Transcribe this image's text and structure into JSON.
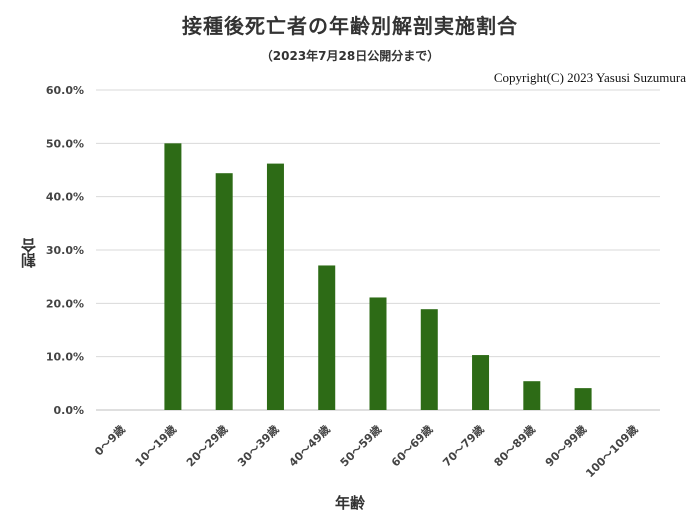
{
  "chart_data": {
    "type": "bar",
    "title": "接種後死亡者の年齢別解剖実施割合",
    "subtitle": "（2023年7月28日公開分まで）",
    "copyright": "Copyright(C)  2023 Yasusi Suzumura",
    "xlabel": "年齢",
    "ylabel": "割合",
    "categories": [
      "0～9歳",
      "10～19歳",
      "20～29歳",
      "30～39歳",
      "40～49歳",
      "50～59歳",
      "60～69歳",
      "70～79歳",
      "80～89歳",
      "90～99歳",
      "100～109歳"
    ],
    "values": [
      0.0,
      50.0,
      44.4,
      46.2,
      27.1,
      21.1,
      18.9,
      10.3,
      5.4,
      4.1,
      0.0
    ],
    "yticks": [
      "0.0%",
      "10.0%",
      "20.0%",
      "30.0%",
      "40.0%",
      "50.0%",
      "60.0%"
    ],
    "ylim": [
      0,
      60
    ],
    "grid": true,
    "bar_color": "#2d6b16",
    "grid_color": "#d9d9d9"
  }
}
